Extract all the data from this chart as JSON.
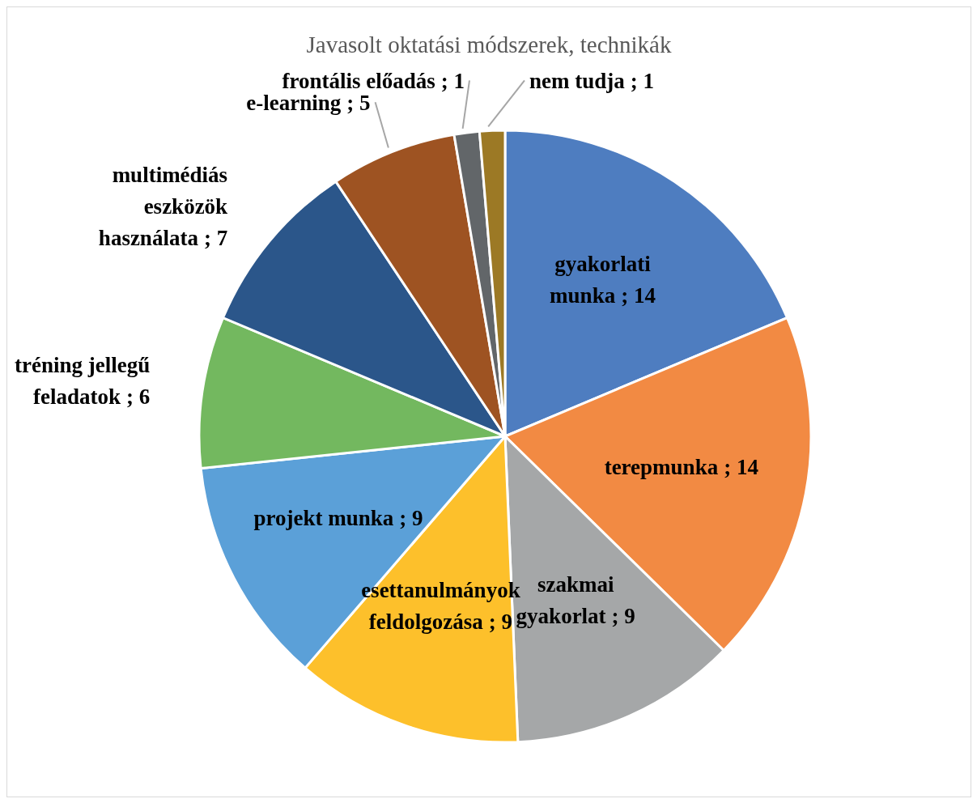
{
  "chart_data": {
    "type": "pie",
    "title": "Javasolt oktatási módszerek, technikák",
    "categories": [
      "gyakorlati munka",
      "terepmunka",
      "szakmai gyakorlat",
      "esettanulmányok feldolgozása",
      "projekt munka",
      "tréning jellegű feladatok",
      "multimédiás eszközök használata",
      "e-learning",
      "frontális előadás",
      "nem tudja"
    ],
    "values": [
      14,
      14,
      9,
      9,
      9,
      6,
      7,
      5,
      1,
      1
    ],
    "value_labels": [
      "; 14",
      "; 14",
      "; 9",
      "; 9",
      "; 9",
      "; 6",
      "; 7",
      "; 5",
      "; 1",
      "; 1"
    ],
    "colors": [
      "#4e7dc0",
      "#f28a43",
      "#a5a7a8",
      "#fdc02b",
      "#5ba0d8",
      "#73b85f",
      "#2b568a",
      "#9e5322",
      "#626669",
      "#9c7925"
    ]
  }
}
